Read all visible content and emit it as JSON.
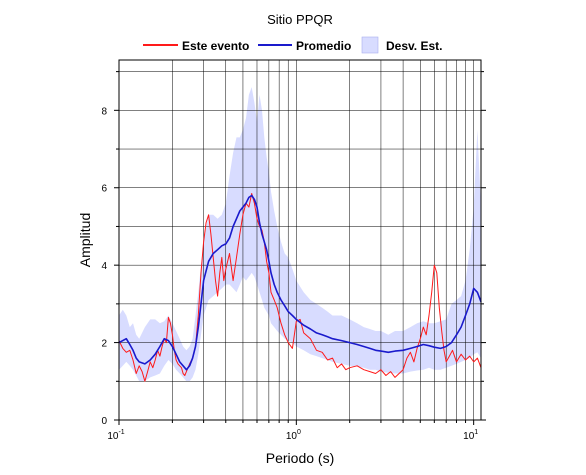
{
  "chart_data": {
    "type": "line",
    "title": "Sitio PPQR",
    "xlabel": "Periodo (s)",
    "ylabel": "Amplitud",
    "xscale": "log",
    "xlim": [
      0.1,
      11
    ],
    "ylim": [
      0,
      9.3
    ],
    "x_ticks": [
      0.1,
      1,
      10
    ],
    "x_tick_labels": [
      {
        "base": "10",
        "exp": "-1"
      },
      {
        "base": "10",
        "exp": "0"
      },
      {
        "base": "10",
        "exp": "1"
      }
    ],
    "y_ticks": [
      0,
      2,
      4,
      6,
      8
    ],
    "y_tick_labels": [
      "0",
      "2",
      "4",
      "6",
      "8"
    ],
    "grid": true,
    "legend_position": "top-center",
    "series": [
      {
        "name": "Este evento",
        "color": "#ff1a1a",
        "x": [
          0.1,
          0.105,
          0.11,
          0.115,
          0.12,
          0.125,
          0.13,
          0.135,
          0.14,
          0.145,
          0.15,
          0.155,
          0.16,
          0.165,
          0.17,
          0.175,
          0.18,
          0.185,
          0.19,
          0.195,
          0.2,
          0.205,
          0.21,
          0.215,
          0.22,
          0.225,
          0.23,
          0.235,
          0.24,
          0.25,
          0.26,
          0.27,
          0.28,
          0.29,
          0.3,
          0.31,
          0.32,
          0.33,
          0.34,
          0.35,
          0.36,
          0.37,
          0.38,
          0.39,
          0.4,
          0.42,
          0.44,
          0.46,
          0.48,
          0.5,
          0.52,
          0.54,
          0.56,
          0.58,
          0.6,
          0.62,
          0.64,
          0.66,
          0.68,
          0.7,
          0.72,
          0.75,
          0.78,
          0.82,
          0.86,
          0.9,
          0.95,
          1.0,
          1.05,
          1.1,
          1.2,
          1.3,
          1.4,
          1.5,
          1.6,
          1.7,
          1.8,
          1.9,
          2.0,
          2.2,
          2.4,
          2.6,
          2.8,
          3.0,
          3.2,
          3.4,
          3.6,
          3.8,
          4.0,
          4.2,
          4.4,
          4.6,
          4.8,
          5.0,
          5.2,
          5.4,
          5.6,
          5.8,
          6.0,
          6.2,
          6.4,
          6.6,
          6.8,
          7.0,
          7.3,
          7.6,
          8.0,
          8.5,
          9.0,
          9.5,
          10.0,
          10.5,
          11.0
        ],
        "values": [
          2.05,
          1.85,
          1.75,
          1.8,
          1.55,
          1.2,
          1.4,
          1.25,
          1.0,
          1.25,
          1.5,
          1.35,
          1.55,
          1.8,
          1.65,
          1.9,
          2.1,
          2.0,
          2.65,
          2.5,
          2.2,
          1.8,
          1.55,
          1.45,
          1.4,
          1.35,
          1.2,
          1.15,
          1.25,
          1.45,
          1.6,
          1.9,
          2.7,
          3.8,
          4.6,
          5.1,
          5.3,
          4.8,
          4.2,
          3.6,
          3.2,
          3.8,
          4.2,
          3.6,
          3.9,
          4.3,
          3.6,
          4.2,
          4.8,
          5.3,
          5.6,
          5.5,
          5.85,
          5.6,
          5.2,
          5.0,
          4.9,
          4.6,
          4.1,
          3.8,
          3.3,
          3.1,
          2.9,
          2.5,
          2.2,
          2.0,
          1.85,
          2.55,
          2.6,
          2.25,
          2.1,
          1.8,
          1.75,
          1.55,
          1.6,
          1.35,
          1.45,
          1.3,
          1.35,
          1.4,
          1.3,
          1.25,
          1.2,
          1.3,
          1.15,
          1.25,
          1.1,
          1.2,
          1.3,
          1.6,
          1.75,
          1.5,
          1.85,
          2.1,
          2.4,
          2.2,
          2.7,
          3.3,
          4.0,
          3.8,
          2.9,
          2.3,
          1.8,
          1.5,
          1.65,
          1.8,
          1.5,
          1.7,
          1.55,
          1.65,
          1.5,
          1.6,
          1.35
        ]
      },
      {
        "name": "Promedio",
        "color": "#1a1acc",
        "x": [
          0.1,
          0.105,
          0.11,
          0.115,
          0.12,
          0.125,
          0.13,
          0.14,
          0.15,
          0.16,
          0.17,
          0.18,
          0.19,
          0.2,
          0.21,
          0.22,
          0.23,
          0.24,
          0.25,
          0.26,
          0.27,
          0.28,
          0.29,
          0.3,
          0.32,
          0.34,
          0.36,
          0.38,
          0.4,
          0.42,
          0.44,
          0.46,
          0.48,
          0.5,
          0.52,
          0.54,
          0.56,
          0.58,
          0.6,
          0.62,
          0.64,
          0.66,
          0.68,
          0.7,
          0.72,
          0.75,
          0.78,
          0.82,
          0.86,
          0.9,
          0.95,
          1.0,
          1.1,
          1.2,
          1.3,
          1.4,
          1.5,
          1.6,
          1.8,
          2.0,
          2.2,
          2.4,
          2.6,
          2.8,
          3.0,
          3.3,
          3.6,
          4.0,
          4.4,
          4.8,
          5.2,
          5.6,
          6.0,
          6.5,
          7.0,
          7.5,
          8.0,
          8.5,
          9.0,
          9.5,
          10.0,
          10.5,
          11.0
        ],
        "values": [
          2.0,
          2.05,
          2.1,
          1.95,
          1.8,
          1.6,
          1.5,
          1.45,
          1.55,
          1.7,
          1.9,
          2.1,
          2.05,
          1.9,
          1.7,
          1.5,
          1.4,
          1.3,
          1.4,
          1.6,
          1.9,
          2.4,
          3.0,
          3.6,
          4.1,
          4.3,
          4.4,
          4.5,
          4.55,
          4.7,
          5.0,
          5.2,
          5.4,
          5.5,
          5.6,
          5.75,
          5.8,
          5.7,
          5.5,
          5.1,
          4.8,
          4.6,
          4.4,
          4.1,
          3.8,
          3.5,
          3.3,
          3.1,
          2.95,
          2.8,
          2.7,
          2.6,
          2.45,
          2.35,
          2.25,
          2.2,
          2.15,
          2.1,
          2.05,
          2.0,
          1.95,
          1.9,
          1.85,
          1.8,
          1.78,
          1.75,
          1.78,
          1.8,
          1.85,
          1.9,
          1.95,
          1.92,
          1.88,
          1.85,
          1.9,
          2.0,
          2.2,
          2.4,
          2.7,
          3.0,
          3.4,
          3.3,
          3.05
        ]
      }
    ],
    "band": {
      "name": "Desv. Est.",
      "color": "#d8dcff",
      "x": [
        0.1,
        0.105,
        0.11,
        0.115,
        0.12,
        0.125,
        0.13,
        0.14,
        0.15,
        0.16,
        0.17,
        0.18,
        0.19,
        0.2,
        0.21,
        0.22,
        0.23,
        0.24,
        0.25,
        0.26,
        0.27,
        0.28,
        0.29,
        0.3,
        0.32,
        0.34,
        0.36,
        0.38,
        0.4,
        0.42,
        0.44,
        0.46,
        0.48,
        0.5,
        0.52,
        0.54,
        0.56,
        0.58,
        0.6,
        0.62,
        0.64,
        0.66,
        0.68,
        0.7,
        0.72,
        0.75,
        0.78,
        0.82,
        0.86,
        0.9,
        0.95,
        1.0,
        1.1,
        1.2,
        1.3,
        1.4,
        1.5,
        1.6,
        1.8,
        2.0,
        2.2,
        2.4,
        2.6,
        2.8,
        3.0,
        3.3,
        3.6,
        4.0,
        4.4,
        4.8,
        5.2,
        5.6,
        6.0,
        6.5,
        7.0,
        7.5,
        8.0,
        8.5,
        9.0,
        9.5,
        10.0,
        10.5,
        11.0
      ],
      "upper": [
        2.7,
        2.85,
        2.7,
        2.4,
        2.5,
        2.2,
        2.1,
        2.4,
        2.6,
        2.6,
        2.5,
        2.55,
        2.7,
        2.5,
        2.3,
        2.1,
        1.9,
        1.8,
        1.9,
        2.1,
        2.7,
        3.3,
        4.0,
        4.6,
        5.3,
        5.3,
        5.2,
        5.3,
        5.6,
        6.3,
        6.9,
        7.3,
        7.3,
        7.5,
        7.8,
        8.4,
        8.6,
        8.2,
        7.7,
        8.4,
        8.0,
        7.3,
        6.8,
        6.4,
        5.9,
        5.4,
        5.0,
        4.6,
        4.3,
        4.2,
        3.9,
        3.6,
        3.3,
        3.1,
        3.0,
        2.9,
        2.8,
        2.7,
        2.7,
        2.6,
        2.5,
        2.4,
        2.35,
        2.3,
        2.3,
        2.2,
        2.3,
        2.3,
        2.4,
        2.5,
        2.55,
        2.5,
        2.5,
        2.55,
        2.6,
        3.0,
        3.1,
        3.2,
        3.6,
        4.4,
        5.5,
        7.5,
        5.5
      ],
      "lower": [
        1.3,
        1.4,
        1.5,
        1.4,
        1.3,
        1.15,
        1.0,
        1.0,
        1.1,
        1.15,
        1.2,
        1.4,
        1.55,
        1.45,
        1.3,
        1.2,
        1.1,
        1.0,
        1.0,
        1.1,
        1.3,
        1.7,
        2.2,
        2.7,
        3.1,
        3.2,
        3.3,
        3.4,
        3.5,
        3.5,
        3.4,
        3.3,
        3.5,
        3.7,
        3.6,
        3.7,
        3.8,
        3.7,
        3.5,
        3.3,
        3.1,
        2.9,
        2.8,
        2.7,
        2.5,
        2.4,
        2.3,
        2.2,
        2.1,
        2.05,
        2.0,
        1.9,
        1.8,
        1.7,
        1.65,
        1.6,
        1.55,
        1.5,
        1.45,
        1.4,
        1.38,
        1.35,
        1.3,
        1.3,
        1.25,
        1.22,
        1.2,
        1.2,
        1.25,
        1.28,
        1.3,
        1.35,
        1.3,
        1.3,
        1.35,
        1.4,
        1.45,
        1.5,
        1.55,
        1.6,
        1.7,
        1.75,
        1.6
      ]
    }
  }
}
